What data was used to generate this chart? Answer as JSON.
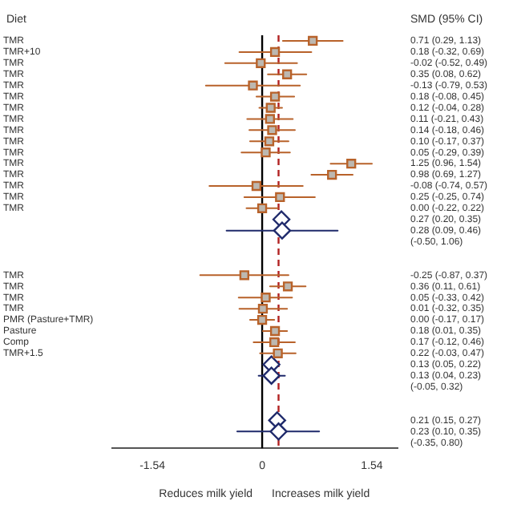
{
  "chart_data": {
    "type": "scatter",
    "orientation": "horizontal",
    "ylabel": "Diet",
    "categories": [
      "TMR",
      "TMR+10",
      "TMR",
      "TMR",
      "TMR",
      "TMR",
      "TMR",
      "TMR",
      "TMR",
      "TMR",
      "TMR",
      "TMR",
      "TMR",
      "TMR",
      "TMR",
      "TMR",
      null,
      null,
      null,
      null,
      null,
      "TMR",
      "TMR",
      "TMR",
      "TMR",
      "PMR (Pasture+TMR)",
      "Pasture",
      "Comp",
      "TMR+1.5",
      null,
      null,
      null,
      null,
      null,
      null,
      null,
      null
    ],
    "series": [
      {
        "color": "#b8622a",
        "marker": "square",
        "values": [
          0.71,
          0.18,
          -0.02,
          0.35,
          -0.13,
          0.18,
          0.12,
          0.11,
          0.14,
          0.1,
          0.05,
          1.25,
          0.98,
          -0.08,
          0.25,
          0,
          null,
          null,
          null,
          null,
          null,
          -0.25,
          0.36,
          0.05,
          0.01,
          0,
          0.18,
          0.17,
          0.22,
          null,
          null,
          null,
          null,
          null,
          null,
          null,
          null
        ],
        "errors": [
          [
            0.29,
            1.13
          ],
          [
            -0.32,
            0.69
          ],
          [
            -0.52,
            0.49
          ],
          [
            0.08,
            0.62
          ],
          [
            -0.79,
            0.53
          ],
          [
            -0.08,
            0.45
          ],
          [
            -0.04,
            0.28
          ],
          [
            -0.21,
            0.43
          ],
          [
            -0.18,
            0.46
          ],
          [
            -0.17,
            0.37
          ],
          [
            -0.29,
            0.39
          ],
          [
            0.96,
            1.54
          ],
          [
            0.69,
            1.27
          ],
          [
            -0.74,
            0.57
          ],
          [
            -0.25,
            0.74
          ],
          [
            -0.22,
            0.22
          ],
          null,
          null,
          null,
          null,
          null,
          [
            -0.87,
            0.37
          ],
          [
            0.11,
            0.61
          ],
          [
            -0.33,
            0.42
          ],
          [
            -0.32,
            0.35
          ],
          [
            -0.17,
            0.17
          ],
          [
            0.01,
            0.35
          ],
          [
            -0.12,
            0.46
          ],
          [
            -0.03,
            0.47
          ],
          null,
          null,
          null,
          null,
          null,
          null,
          null,
          null
        ]
      },
      {
        "color": "#1f2a6b",
        "marker": "diamond",
        "values": [
          null,
          null,
          null,
          null,
          null,
          null,
          null,
          null,
          null,
          null,
          null,
          null,
          null,
          null,
          null,
          null,
          0.27,
          0.28,
          null,
          null,
          null,
          null,
          null,
          null,
          null,
          null,
          null,
          null,
          null,
          0.13,
          0.13,
          null,
          null,
          null,
          0.21,
          0.23,
          null
        ],
        "errors": [
          null,
          null,
          null,
          null,
          null,
          null,
          null,
          null,
          null,
          null,
          null,
          null,
          null,
          null,
          null,
          null,
          null,
          [
            -0.5,
            1.06
          ],
          null,
          null,
          null,
          null,
          null,
          null,
          null,
          null,
          null,
          null,
          null,
          null,
          [
            -0.05,
            0.32
          ],
          null,
          null,
          null,
          null,
          [
            -0.35,
            0.8
          ],
          null
        ]
      }
    ],
    "value_labels": [
      "0.71 (0.29, 1.13)",
      "0.18 (-0.32, 0.69)",
      "-0.02 (-0.52, 0.49)",
      "0.35 (0.08, 0.62)",
      "-0.13 (-0.79, 0.53)",
      "0.18 (-0.08, 0.45)",
      "0.12 (-0.04, 0.28)",
      "0.11 (-0.21, 0.43)",
      "0.14 (-0.18, 0.46)",
      "0.10 (-0.17, 0.37)",
      "0.05 (-0.29, 0.39)",
      "1.25 (0.96, 1.54)",
      "0.98 (0.69, 1.27)",
      "-0.08 (-0.74, 0.57)",
      "0.25 (-0.25, 0.74)",
      "0.00 (-0.22, 0.22)",
      "0.27 (0.20, 0.35)",
      "0.28 (0.09, 0.46)",
      "(-0.50, 1.06)",
      null,
      null,
      "-0.25 (-0.87, 0.37)",
      "0.36 (0.11, 0.61)",
      "0.05 (-0.33, 0.42)",
      "0.01 (-0.32, 0.35)",
      "0.00 (-0.17, 0.17)",
      "0.18 (0.01, 0.35)",
      "0.17 (-0.12, 0.46)",
      "0.22 (-0.03, 0.47)",
      "0.13 (0.05, 0.22)",
      "0.13 (0.04, 0.23)",
      "(-0.05, 0.32)",
      null,
      null,
      "0.21 (0.15, 0.27)",
      "0.23 (0.10, 0.35)",
      "(-0.35, 0.80)"
    ],
    "xlim": [
      -2.1,
      1.9
    ],
    "xticks": [
      -1.54,
      0,
      1.54
    ],
    "ref_lines": [
      {
        "axis": "x",
        "value": 0,
        "color": "#000000",
        "line_style": "solid"
      },
      {
        "axis": "x",
        "value": 0.23,
        "color": "#b22222",
        "line_style": "dashed"
      }
    ],
    "annotations": [
      "SMD (95% CI)",
      "Reduces milk yield",
      "Increases milk yield"
    ],
    "grid": false,
    "legend": false
  }
}
